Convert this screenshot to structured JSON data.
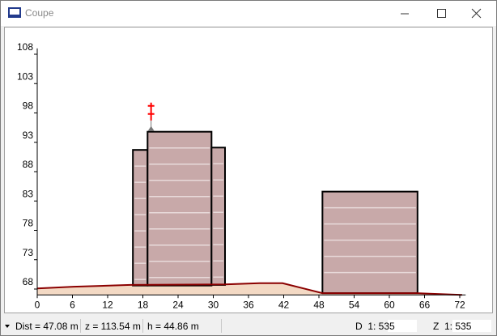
{
  "window": {
    "title": "Coupe"
  },
  "chart_data": {
    "type": "section",
    "xlim": [
      0,
      73
    ],
    "ylim": [
      67,
      109
    ],
    "xticks": [
      0,
      6,
      12,
      18,
      24,
      30,
      36,
      42,
      48,
      54,
      60,
      66,
      72
    ],
    "yticks": [
      68,
      73,
      78,
      83,
      88,
      93,
      98,
      103,
      108
    ],
    "buildings": [
      {
        "x": [
          16.3,
          18.8
        ],
        "base": 68.6,
        "top": 91.7
      },
      {
        "x": [
          18.8,
          29.7
        ],
        "base": 68.6,
        "top": 94.8
      },
      {
        "x": [
          29.7,
          32.0
        ],
        "base": 68.7,
        "top": 92.1
      },
      {
        "x": [
          48.6,
          64.8
        ],
        "base": 67.3,
        "top": 84.6
      }
    ],
    "building_color": "#c8a9a9",
    "terrain": {
      "x": [
        0,
        6.2,
        15.9,
        32.0,
        37.9,
        41.8,
        48.6,
        64.8,
        66.8,
        72.4
      ],
      "y": [
        68.1,
        68.4,
        68.7,
        68.8,
        69.0,
        69.0,
        67.3,
        67.3,
        67.2,
        67.0
      ],
      "color": "#8b0000",
      "fill": "#f3d9c4"
    },
    "point": {
      "x": 19.4,
      "y": 99.2,
      "color": "#ff0000"
    }
  },
  "status_bar": {
    "dist": "Dist = 47.08 m",
    "z": "z = 113.54 m",
    "h": "h = 44.86 m",
    "d_scale": "D  1: 535",
    "z_scale": "Z  1: 535"
  }
}
